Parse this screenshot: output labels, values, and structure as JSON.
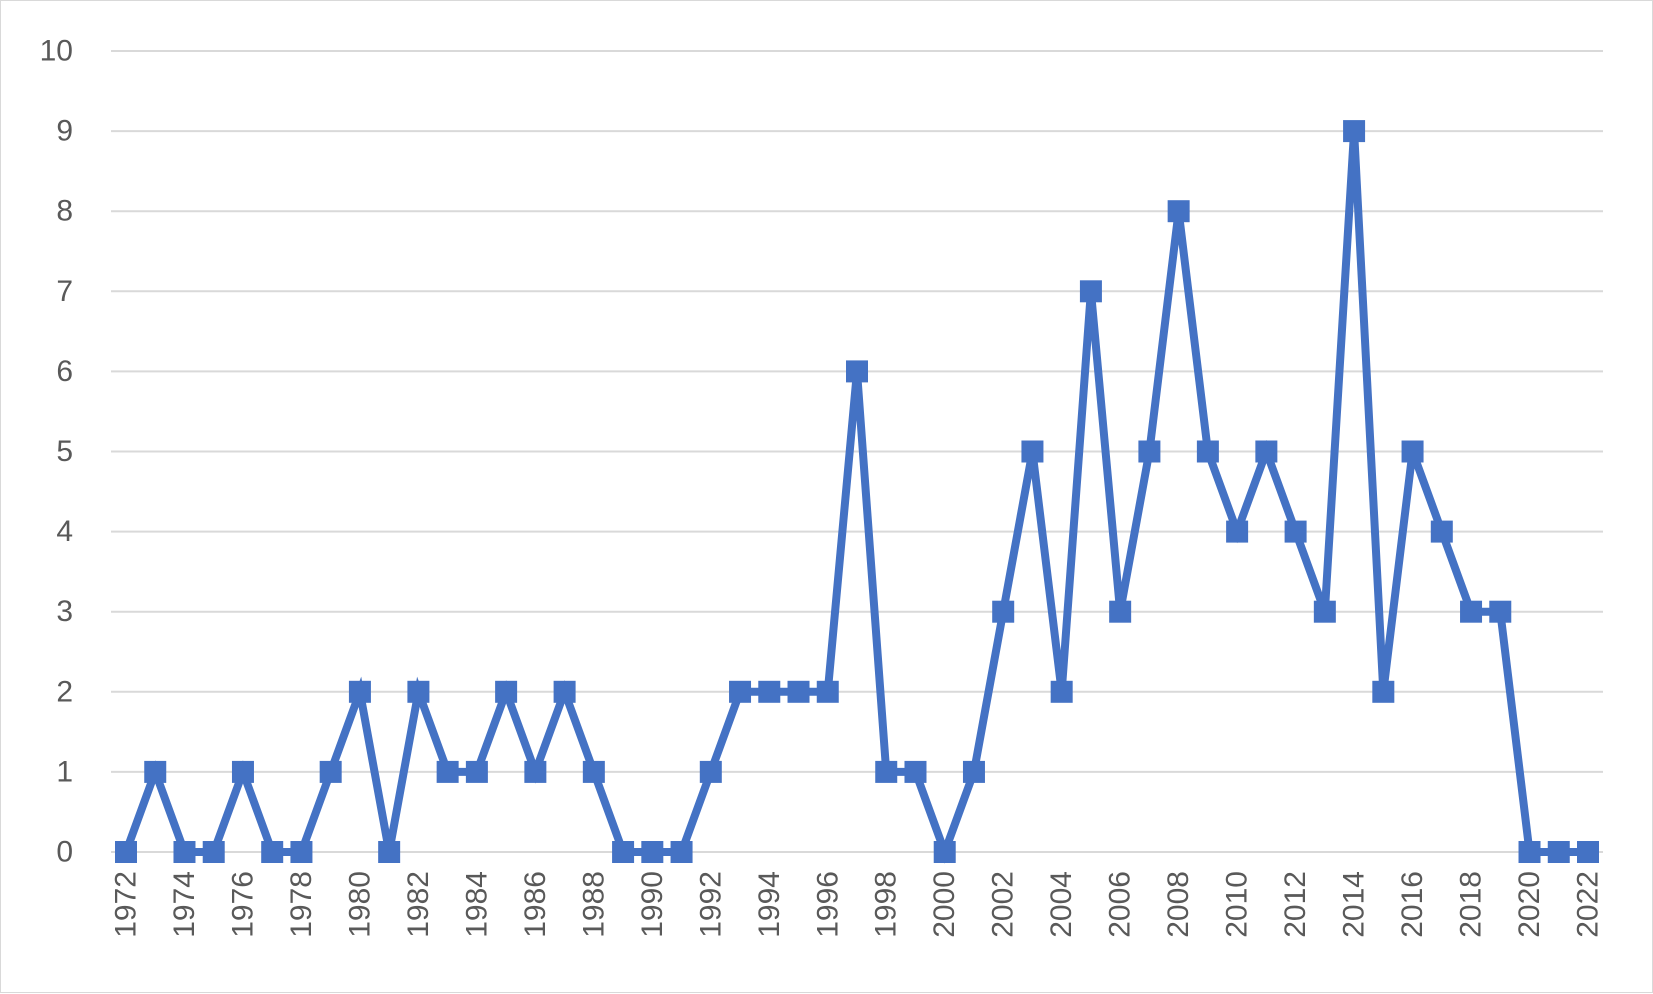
{
  "chart_data": {
    "type": "line",
    "title": "",
    "xlabel": "",
    "ylabel": "",
    "x": [
      1972,
      1973,
      1974,
      1975,
      1976,
      1977,
      1978,
      1979,
      1980,
      1981,
      1982,
      1983,
      1984,
      1985,
      1986,
      1987,
      1988,
      1989,
      1990,
      1991,
      1992,
      1993,
      1994,
      1995,
      1996,
      1997,
      1998,
      1999,
      2000,
      2001,
      2002,
      2003,
      2004,
      2005,
      2006,
      2007,
      2008,
      2009,
      2010,
      2011,
      2012,
      2013,
      2014,
      2015,
      2016,
      2017,
      2018,
      2019,
      2020,
      2021,
      2022
    ],
    "series": [
      {
        "values": [
          0,
          1,
          0,
          0,
          1,
          0,
          0,
          1,
          2,
          0,
          2,
          1,
          1,
          2,
          1,
          2,
          1,
          0,
          0,
          0,
          1,
          2,
          2,
          2,
          2,
          6,
          1,
          1,
          0,
          1,
          3,
          5,
          2,
          7,
          3,
          5,
          8,
          5,
          4,
          5,
          4,
          3,
          9,
          2,
          5,
          4,
          3,
          3,
          0,
          0,
          0
        ]
      }
    ],
    "x_tick_labels": [
      "1972",
      "1974",
      "1976",
      "1978",
      "1980",
      "1982",
      "1984",
      "1986",
      "1988",
      "1990",
      "1992",
      "1994",
      "1996",
      "1998",
      "2000",
      "2002",
      "2004",
      "2006",
      "2008",
      "2010",
      "2012",
      "2014",
      "2016",
      "2018",
      "2020",
      "2022"
    ],
    "y_tick_labels": [
      "0",
      "1",
      "2",
      "3",
      "4",
      "5",
      "6",
      "7",
      "8",
      "9",
      "10"
    ],
    "ylim": [
      0,
      10
    ],
    "grid": true,
    "legend": "none",
    "colors": {
      "line": "#4472c4",
      "grid": "#d9d9d9",
      "text": "#595959"
    }
  }
}
